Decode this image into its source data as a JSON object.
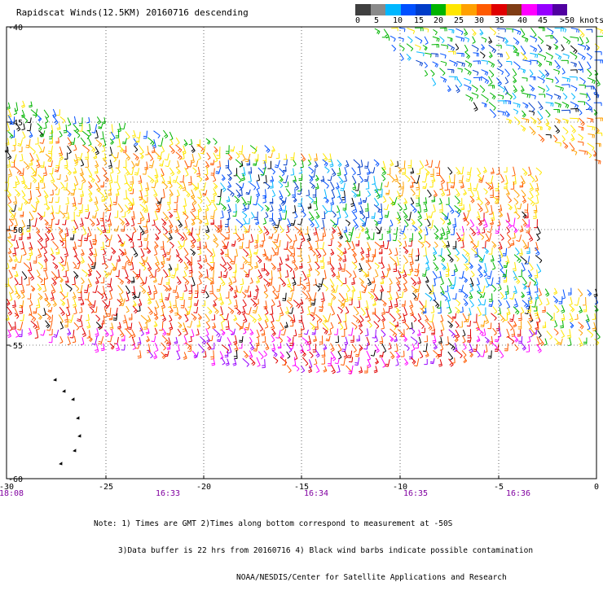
{
  "header": {
    "title": "Rapidscat Winds(12.5KM) 20160716 descending"
  },
  "colorbar": {
    "colors": [
      "#3f3f3f",
      "#8a8a8a",
      "#00b7ff",
      "#0050ff",
      "#003cc8",
      "#00b400",
      "#ffe600",
      "#ffa000",
      "#ff5a00",
      "#e00000",
      "#7f3c14",
      "#ff00ff",
      "#9600ff",
      "#5000a0"
    ],
    "labels": [
      "0",
      "5",
      "10",
      "15",
      "20",
      "25",
      "30",
      "35",
      "40",
      "45",
      ">50 knots"
    ]
  },
  "map": {
    "lon_ticks": [
      "-30",
      "-25",
      "-20",
      "-15",
      "-10",
      "-5",
      "0"
    ],
    "lat_ticks": [
      "-40",
      "-45",
      "-50",
      "-55",
      "-60"
    ],
    "time_ticks": [
      "18:08",
      "16:33",
      "16:34",
      "16:35",
      "16:36"
    ]
  },
  "notes": {
    "line1": "Note: 1) Times are GMT 2)Times along bottom correspond to measurement at -50S",
    "line2": "3)Data buffer is 22 hrs from 20160716 4) Black wind barbs indicate possible contamination",
    "line3": "NOAA/NESDIS/Center for Satellite Applications and Research"
  }
}
